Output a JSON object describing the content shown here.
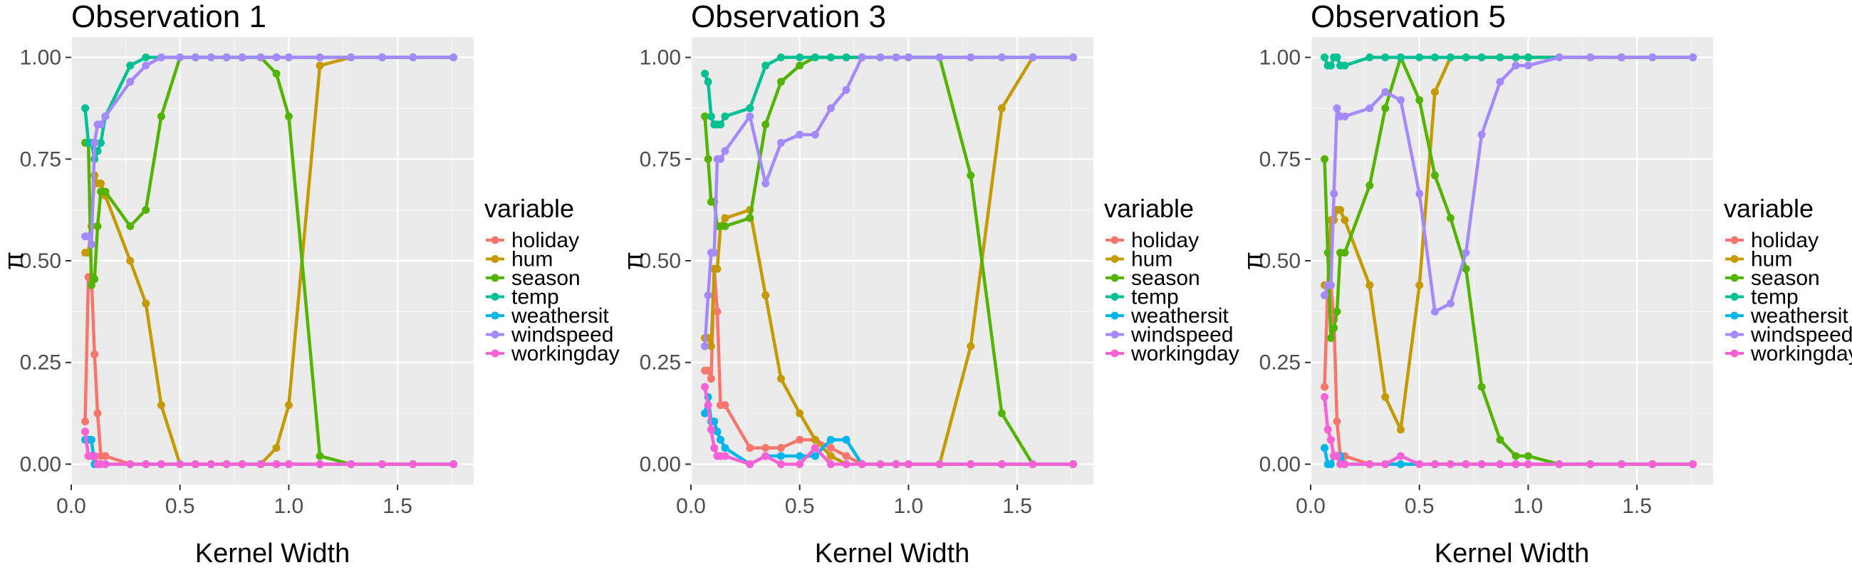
{
  "variables": [
    "holiday",
    "hum",
    "season",
    "temp",
    "weathersit",
    "windspeed",
    "workingday"
  ],
  "colors": {
    "holiday": "#F8766D",
    "hum": "#C49A00",
    "season": "#53B400",
    "temp": "#00C094",
    "weathersit": "#00B6EB",
    "windspeed": "#A58AFF",
    "workingday": "#FB61D7"
  },
  "chart_data": [
    {
      "type": "line",
      "title": "Observation 1",
      "xlabel": "Kernel Width",
      "ylabel": "π",
      "legend_title": "variable",
      "legend_placement": "right",
      "grid": true,
      "xlim": [
        0,
        1.85
      ],
      "ylim": [
        -0.05,
        1.05
      ],
      "xticks": [
        0,
        0.5,
        1,
        1.5
      ],
      "xtick_labels": [
        "0.0",
        "0.5",
        "1.0",
        "1.5"
      ],
      "yticks": [
        0,
        0.25,
        0.5,
        0.75,
        1
      ],
      "ytick_labels": [
        "0.00",
        "0.25",
        "0.50",
        "0.75",
        "1.00"
      ],
      "x": [
        0.064,
        0.079,
        0.093,
        0.107,
        0.121,
        0.136,
        0.157,
        0.271,
        0.343,
        0.414,
        0.5,
        0.571,
        0.643,
        0.714,
        0.786,
        0.871,
        0.943,
        1.0,
        1.143,
        1.286,
        1.429,
        1.571,
        1.757
      ],
      "series": [
        {
          "name": "holiday",
          "values": [
            0.105,
            0.46,
            0.46,
            0.27,
            0.125,
            0.02,
            0.02,
            0.0,
            0.0,
            0.0,
            0.0,
            0.0,
            0.0,
            0.0,
            0.0,
            0.0,
            0.0,
            0.0,
            0.0,
            0.0,
            0.0,
            0.0,
            0.0
          ]
        },
        {
          "name": "hum",
          "values": [
            0.52,
            0.52,
            0.585,
            0.71,
            0.69,
            0.69,
            0.66,
            0.5,
            0.395,
            0.145,
            0.0,
            0.0,
            0.0,
            0.0,
            0.0,
            0.0,
            0.04,
            0.145,
            0.98,
            1.0,
            1.0,
            1.0,
            1.0
          ]
        },
        {
          "name": "season",
          "values": [
            0.79,
            0.79,
            0.44,
            0.455,
            0.585,
            0.67,
            0.67,
            0.585,
            0.625,
            0.855,
            1.0,
            1.0,
            1.0,
            1.0,
            1.0,
            1.0,
            0.96,
            0.855,
            0.02,
            0.0,
            0.0,
            0.0,
            0.0
          ]
        },
        {
          "name": "temp",
          "values": [
            0.875,
            0.79,
            0.79,
            0.75,
            0.77,
            0.79,
            0.855,
            0.98,
            1.0,
            1.0,
            1.0,
            1.0,
            1.0,
            1.0,
            1.0,
            1.0,
            1.0,
            1.0,
            1.0,
            1.0,
            1.0,
            1.0,
            1.0
          ]
        },
        {
          "name": "weathersit",
          "values": [
            0.06,
            0.06,
            0.06,
            0.0,
            0.0,
            0.0,
            0.0,
            0.0,
            0.0,
            0.0,
            0.0,
            0.0,
            0.0,
            0.0,
            0.0,
            0.0,
            0.0,
            0.0,
            0.0,
            0.0,
            0.0,
            0.0,
            0.0
          ]
        },
        {
          "name": "windspeed",
          "values": [
            0.56,
            0.56,
            0.54,
            0.79,
            0.835,
            0.835,
            0.855,
            0.94,
            0.98,
            1.0,
            1.0,
            1.0,
            1.0,
            1.0,
            1.0,
            1.0,
            1.0,
            1.0,
            1.0,
            1.0,
            1.0,
            1.0,
            1.0
          ]
        },
        {
          "name": "workingday",
          "values": [
            0.08,
            0.02,
            0.02,
            0.02,
            0.0,
            0.0,
            0.0,
            0.0,
            0.0,
            0.0,
            0.0,
            0.0,
            0.0,
            0.0,
            0.0,
            0.0,
            0.0,
            0.0,
            0.0,
            0.0,
            0.0,
            0.0,
            0.0
          ]
        }
      ]
    },
    {
      "type": "line",
      "title": "Observation 3",
      "xlabel": "Kernel Width",
      "ylabel": "π",
      "legend_title": "variable",
      "legend_placement": "right",
      "grid": true,
      "xlim": [
        0,
        1.85
      ],
      "ylim": [
        -0.05,
        1.05
      ],
      "xticks": [
        0,
        0.5,
        1,
        1.5
      ],
      "xtick_labels": [
        "0.0",
        "0.5",
        "1.0",
        "1.5"
      ],
      "yticks": [
        0,
        0.25,
        0.5,
        0.75,
        1
      ],
      "ytick_labels": [
        "0.00",
        "0.25",
        "0.50",
        "0.75",
        "1.00"
      ],
      "x": [
        0.064,
        0.079,
        0.093,
        0.107,
        0.121,
        0.136,
        0.157,
        0.271,
        0.343,
        0.414,
        0.5,
        0.571,
        0.643,
        0.714,
        0.786,
        0.871,
        0.943,
        1.0,
        1.143,
        1.286,
        1.429,
        1.571,
        1.757
      ],
      "series": [
        {
          "name": "holiday",
          "values": [
            0.23,
            0.23,
            0.21,
            0.48,
            0.375,
            0.145,
            0.145,
            0.04,
            0.04,
            0.04,
            0.06,
            0.06,
            0.04,
            0.02,
            0.0,
            0.0,
            0.0,
            0.0,
            0.0,
            0.0,
            0.0,
            0.0,
            0.0
          ]
        },
        {
          "name": "hum",
          "values": [
            0.31,
            0.31,
            0.29,
            0.48,
            0.48,
            0.585,
            0.605,
            0.625,
            0.415,
            0.21,
            0.125,
            0.06,
            0.02,
            0.0,
            0.0,
            0.0,
            0.0,
            0.0,
            0.0,
            0.29,
            0.875,
            1.0,
            1.0
          ]
        },
        {
          "name": "season",
          "values": [
            0.855,
            0.75,
            0.645,
            0.645,
            0.585,
            0.585,
            0.585,
            0.605,
            0.835,
            0.94,
            0.98,
            1.0,
            1.0,
            1.0,
            1.0,
            1.0,
            1.0,
            1.0,
            1.0,
            0.71,
            0.125,
            0.0,
            0.0
          ]
        },
        {
          "name": "temp",
          "values": [
            0.96,
            0.94,
            0.855,
            0.835,
            0.835,
            0.835,
            0.855,
            0.875,
            0.98,
            1.0,
            1.0,
            1.0,
            1.0,
            1.0,
            1.0,
            1.0,
            1.0,
            1.0,
            1.0,
            1.0,
            1.0,
            1.0,
            1.0
          ]
        },
        {
          "name": "weathersit",
          "values": [
            0.125,
            0.165,
            0.105,
            0.105,
            0.08,
            0.06,
            0.04,
            0.0,
            0.02,
            0.02,
            0.02,
            0.02,
            0.06,
            0.06,
            0.0,
            0.0,
            0.0,
            0.0,
            0.0,
            0.0,
            0.0,
            0.0,
            0.0
          ]
        },
        {
          "name": "windspeed",
          "values": [
            0.29,
            0.415,
            0.52,
            0.52,
            0.75,
            0.75,
            0.77,
            0.855,
            0.69,
            0.79,
            0.81,
            0.81,
            0.875,
            0.92,
            1.0,
            1.0,
            1.0,
            1.0,
            1.0,
            1.0,
            1.0,
            1.0,
            1.0
          ]
        },
        {
          "name": "workingday",
          "values": [
            0.19,
            0.145,
            0.085,
            0.04,
            0.02,
            0.02,
            0.02,
            0.0,
            0.02,
            0.0,
            0.0,
            0.04,
            0.0,
            0.0,
            0.0,
            0.0,
            0.0,
            0.0,
            0.0,
            0.0,
            0.0,
            0.0,
            0.0
          ]
        }
      ]
    },
    {
      "type": "line",
      "title": "Observation 5",
      "xlabel": "Kernel Width",
      "ylabel": "π",
      "legend_title": "variable",
      "legend_placement": "right",
      "grid": true,
      "xlim": [
        0,
        1.85
      ],
      "ylim": [
        -0.05,
        1.05
      ],
      "xticks": [
        0,
        0.5,
        1,
        1.5
      ],
      "xtick_labels": [
        "0.0",
        "0.5",
        "1.0",
        "1.5"
      ],
      "yticks": [
        0,
        0.25,
        0.5,
        0.75,
        1
      ],
      "ytick_labels": [
        "0.00",
        "0.25",
        "0.50",
        "0.75",
        "1.00"
      ],
      "x": [
        0.064,
        0.079,
        0.093,
        0.107,
        0.121,
        0.136,
        0.157,
        0.271,
        0.343,
        0.414,
        0.5,
        0.571,
        0.643,
        0.714,
        0.786,
        0.871,
        0.943,
        1.0,
        1.143,
        1.286,
        1.429,
        1.571,
        1.757
      ],
      "series": [
        {
          "name": "holiday",
          "values": [
            0.19,
            0.44,
            0.44,
            0.355,
            0.105,
            0.02,
            0.02,
            0.0,
            0.0,
            0.0,
            0.0,
            0.0,
            0.0,
            0.0,
            0.0,
            0.0,
            0.0,
            0.0,
            0.0,
            0.0,
            0.0,
            0.0,
            0.0
          ]
        },
        {
          "name": "hum",
          "values": [
            0.44,
            0.44,
            0.6,
            0.6,
            0.625,
            0.625,
            0.6,
            0.44,
            0.165,
            0.085,
            0.44,
            0.915,
            1.0,
            1.0,
            1.0,
            1.0,
            1.0,
            1.0,
            1.0,
            1.0,
            1.0,
            1.0,
            1.0
          ]
        },
        {
          "name": "season",
          "values": [
            0.75,
            0.52,
            0.31,
            0.335,
            0.375,
            0.52,
            0.52,
            0.685,
            0.875,
            1.0,
            0.895,
            0.71,
            0.605,
            0.48,
            0.19,
            0.06,
            0.02,
            0.02,
            0.0,
            0.0,
            0.0,
            0.0,
            0.0
          ]
        },
        {
          "name": "temp",
          "values": [
            1.0,
            0.98,
            0.98,
            1.0,
            1.0,
            0.98,
            0.98,
            1.0,
            1.0,
            1.0,
            1.0,
            1.0,
            1.0,
            1.0,
            1.0,
            1.0,
            1.0,
            1.0,
            1.0,
            1.0,
            1.0,
            1.0,
            1.0
          ]
        },
        {
          "name": "weathersit",
          "values": [
            0.04,
            0.0,
            0.0,
            0.02,
            0.02,
            0.02,
            0.0,
            0.0,
            0.0,
            0.0,
            0.0,
            0.0,
            0.0,
            0.0,
            0.0,
            0.0,
            0.0,
            0.0,
            0.0,
            0.0,
            0.0,
            0.0,
            0.0
          ]
        },
        {
          "name": "windspeed",
          "values": [
            0.415,
            0.44,
            0.44,
            0.665,
            0.875,
            0.855,
            0.855,
            0.875,
            0.915,
            0.895,
            0.665,
            0.375,
            0.395,
            0.52,
            0.81,
            0.94,
            0.98,
            0.98,
            1.0,
            1.0,
            1.0,
            1.0,
            1.0
          ]
        },
        {
          "name": "workingday",
          "values": [
            0.165,
            0.085,
            0.06,
            0.02,
            0.02,
            0.0,
            0.0,
            0.0,
            0.0,
            0.02,
            0.0,
            0.0,
            0.0,
            0.0,
            0.0,
            0.0,
            0.0,
            0.0,
            0.0,
            0.0,
            0.0,
            0.0,
            0.0
          ]
        }
      ]
    }
  ]
}
